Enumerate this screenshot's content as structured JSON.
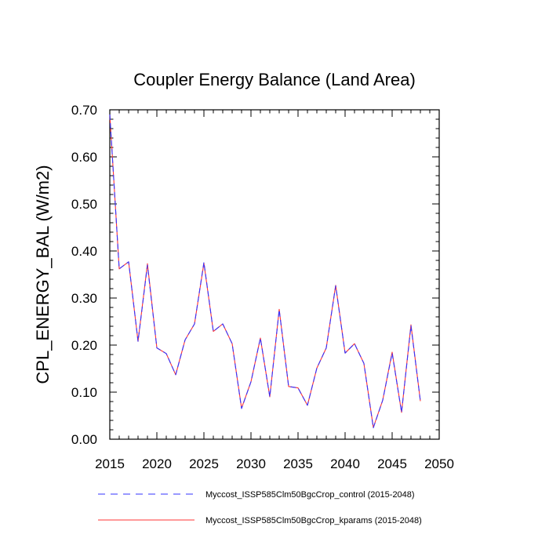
{
  "chart_data": {
    "type": "line",
    "title": "Coupler Energy Balance (Land Area)",
    "xlabel": "",
    "ylabel": "CPL_ENERGY_BAL  (W/m2)",
    "xlim": [
      2015,
      2050
    ],
    "ylim": [
      0.0,
      0.7
    ],
    "x_ticks": [
      "2015",
      "2020",
      "2025",
      "2030",
      "2035",
      "2040",
      "2045",
      "2050"
    ],
    "y_ticks": [
      "0.00",
      "0.10",
      "0.20",
      "0.30",
      "0.40",
      "0.50",
      "0.60",
      "0.70"
    ],
    "x": [
      2015,
      2016,
      2017,
      2018,
      2019,
      2020,
      2021,
      2022,
      2023,
      2024,
      2025,
      2026,
      2027,
      2028,
      2029,
      2030,
      2031,
      2032,
      2033,
      2034,
      2035,
      2036,
      2037,
      2038,
      2039,
      2040,
      2041,
      2042,
      2043,
      2044,
      2045,
      2046,
      2047,
      2048
    ],
    "series": [
      {
        "name": "Myccost_ISSP585Clm50BgcCrop_control (2015-2048)",
        "color": "#3333ff",
        "dash": "dashed",
        "values": [
          0.69,
          0.362,
          0.377,
          0.208,
          0.37,
          0.194,
          0.182,
          0.137,
          0.211,
          0.245,
          0.376,
          0.229,
          0.245,
          0.203,
          0.065,
          0.122,
          0.215,
          0.09,
          0.275,
          0.112,
          0.109,
          0.072,
          0.151,
          0.194,
          0.326,
          0.183,
          0.203,
          0.161,
          0.024,
          0.083,
          0.183,
          0.057,
          0.241,
          0.081
        ]
      },
      {
        "name": "Myccost_ISSP585Clm50BgcCrop_kparams (2015-2048)",
        "color": "#ff3333",
        "dash": "solid",
        "values": [
          0.69,
          0.362,
          0.377,
          0.208,
          0.373,
          0.194,
          0.182,
          0.137,
          0.211,
          0.245,
          0.374,
          0.229,
          0.245,
          0.203,
          0.066,
          0.122,
          0.215,
          0.09,
          0.276,
          0.112,
          0.109,
          0.072,
          0.151,
          0.194,
          0.327,
          0.183,
          0.203,
          0.161,
          0.025,
          0.083,
          0.185,
          0.057,
          0.243,
          0.081
        ]
      }
    ],
    "legend_position": "bottom"
  }
}
